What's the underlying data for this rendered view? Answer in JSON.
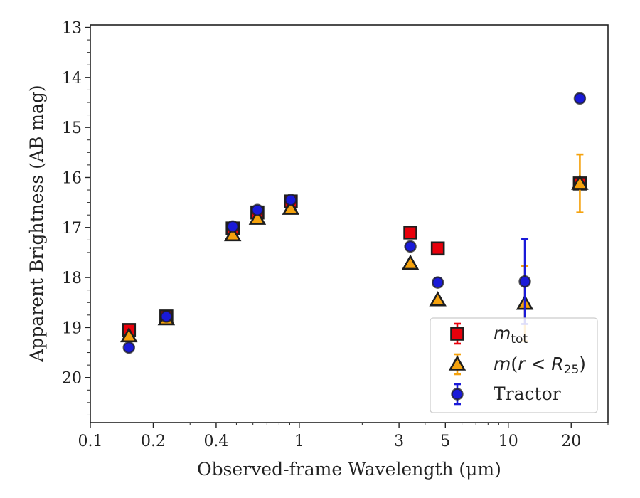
{
  "chart_data": {
    "type": "scatter",
    "xlabel": "Observed-frame Wavelength (μm)",
    "ylabel": "Apparent Brightness (AB mag)",
    "xscale": "log",
    "xlim": [
      0.1,
      30
    ],
    "ylim": [
      20.9,
      12.95
    ],
    "y_inverted": true,
    "x_ticks": [
      0.1,
      0.2,
      0.4,
      1,
      3,
      5,
      10,
      20
    ],
    "x_tick_labels": [
      "0.1",
      "0.2",
      "0.4",
      "1",
      "3",
      "5",
      "10",
      "20"
    ],
    "y_ticks": [
      13,
      14,
      15,
      16,
      17,
      18,
      19,
      20
    ],
    "y_tick_labels": [
      "13",
      "14",
      "15",
      "16",
      "17",
      "18",
      "19",
      "20"
    ],
    "grid": false,
    "legend_position": "lower-right",
    "series": [
      {
        "name": "m_tot",
        "marker": "square",
        "color": "#e8000b",
        "points": [
          {
            "x": 0.153,
            "y": 19.05,
            "err": 0.06
          },
          {
            "x": 0.231,
            "y": 18.78,
            "err": 0.05
          },
          {
            "x": 0.48,
            "y": 17.02,
            "err": 0.05
          },
          {
            "x": 0.63,
            "y": 16.7,
            "err": 0.05
          },
          {
            "x": 0.91,
            "y": 16.48,
            "err": 0.05
          },
          {
            "x": 3.4,
            "y": 17.1,
            "err": 0.04
          },
          {
            "x": 4.6,
            "y": 17.42,
            "err": 0.04
          },
          {
            "x": 22.0,
            "y": 16.12,
            "err": 0.05
          }
        ]
      },
      {
        "name": "m(r<R25)",
        "marker": "triangle",
        "color": "#f5a20d",
        "points": [
          {
            "x": 0.153,
            "y": 19.17,
            "err": 0.04
          },
          {
            "x": 0.231,
            "y": 18.83,
            "err": 0.04
          },
          {
            "x": 0.48,
            "y": 17.15,
            "err": 0.04
          },
          {
            "x": 0.63,
            "y": 16.82,
            "err": 0.04
          },
          {
            "x": 0.91,
            "y": 16.62,
            "err": 0.04
          },
          {
            "x": 3.4,
            "y": 17.72,
            "err": 0.04
          },
          {
            "x": 4.6,
            "y": 18.45,
            "err": 0.04
          },
          {
            "x": 12.0,
            "y": 18.52,
            "err": 0.75
          },
          {
            "x": 22.0,
            "y": 16.12,
            "err": 0.58
          }
        ]
      },
      {
        "name": "Tractor",
        "marker": "circle",
        "color": "#1a1ad8",
        "points": [
          {
            "x": 0.153,
            "y": 19.4,
            "err": 0.05
          },
          {
            "x": 0.231,
            "y": 18.78,
            "err": 0.04
          },
          {
            "x": 0.48,
            "y": 16.98,
            "err": 0.05
          },
          {
            "x": 0.63,
            "y": 16.65,
            "err": 0.04
          },
          {
            "x": 0.91,
            "y": 16.45,
            "err": 0.04
          },
          {
            "x": 3.4,
            "y": 17.38,
            "err": 0.06
          },
          {
            "x": 4.6,
            "y": 18.1,
            "err": 0.08
          },
          {
            "x": 12.0,
            "y": 18.08,
            "err": 0.85
          },
          {
            "x": 22.0,
            "y": 14.42,
            "err": 0.08
          }
        ]
      }
    ]
  }
}
